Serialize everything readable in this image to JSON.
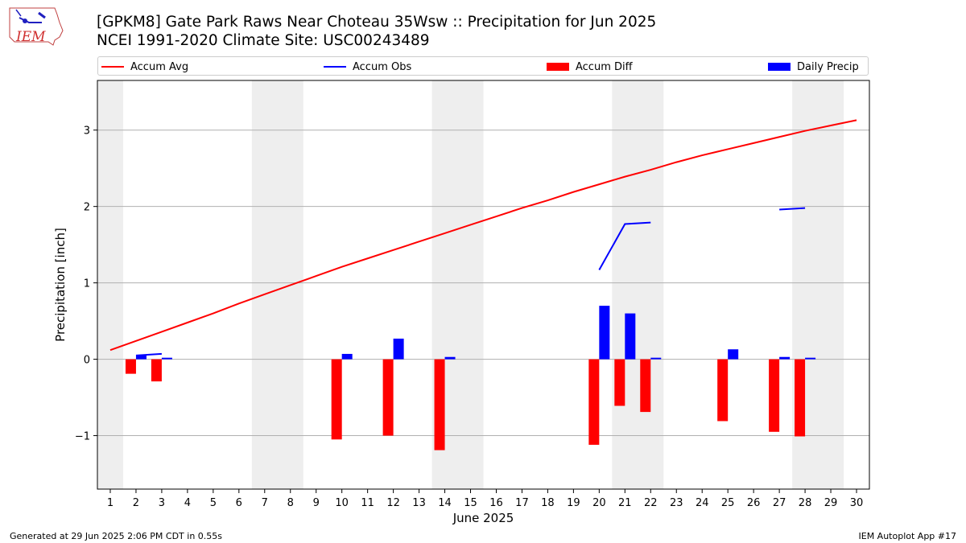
{
  "header": {
    "logo_text": "IEM",
    "title_line1": "[GPKM8] Gate Park Raws Near Choteau 35Wsw :: Precipitation for Jun 2025",
    "title_line2": "NCEI 1991-2020 Climate Site: USC00243489"
  },
  "footer": {
    "generated": "Generated at 29 Jun 2025 2:06 PM CDT in 0.55s",
    "app": "IEM Autoplot App #17"
  },
  "chart_data": {
    "type": "bar",
    "xlabel": "June 2025",
    "ylabel": "Precipitation [inch]",
    "xlim": [
      0.5,
      30.5
    ],
    "ylim": [
      -1.7,
      3.65
    ],
    "yticks": [
      -1,
      0,
      1,
      2,
      3
    ],
    "ytick_labels": [
      "−1",
      "0",
      "1",
      "2",
      "3"
    ],
    "xticks": [
      1,
      2,
      3,
      4,
      5,
      6,
      7,
      8,
      9,
      10,
      11,
      12,
      13,
      14,
      15,
      16,
      17,
      18,
      19,
      20,
      21,
      22,
      23,
      24,
      25,
      26,
      27,
      28,
      29,
      30
    ],
    "grid": "horizontal",
    "legend_position": "top",
    "weekend_shading": [
      [
        0.5,
        1.5
      ],
      [
        6.5,
        8.5
      ],
      [
        13.5,
        15.5
      ],
      [
        20.5,
        22.5
      ],
      [
        27.5,
        29.5
      ]
    ],
    "series": [
      {
        "name": "Accum Avg",
        "kind": "line",
        "color": "#ff0000",
        "x": [
          1,
          2,
          3,
          4,
          5,
          6,
          7,
          8,
          9,
          10,
          11,
          12,
          13,
          14,
          15,
          16,
          17,
          18,
          19,
          20,
          21,
          22,
          23,
          24,
          25,
          26,
          27,
          28,
          29,
          30
        ],
        "values": [
          0.12,
          0.24,
          0.36,
          0.48,
          0.6,
          0.73,
          0.85,
          0.97,
          1.09,
          1.21,
          1.32,
          1.43,
          1.54,
          1.65,
          1.76,
          1.87,
          1.98,
          2.08,
          2.19,
          2.29,
          2.39,
          2.48,
          2.58,
          2.67,
          2.75,
          2.83,
          2.91,
          2.99,
          3.06,
          3.13
        ]
      },
      {
        "name": "Accum Obs",
        "kind": "line",
        "color": "#0000ff",
        "segments": [
          {
            "x": [
              2,
              3
            ],
            "values": [
              0.05,
              0.07
            ]
          },
          {
            "x": [
              20,
              21,
              22
            ],
            "values": [
              1.17,
              1.77,
              1.79
            ]
          },
          {
            "x": [
              27,
              28
            ],
            "values": [
              1.96,
              1.98
            ]
          }
        ]
      },
      {
        "name": "Accum Diff",
        "kind": "bar",
        "color": "#ff0000",
        "x": [
          2,
          3,
          10,
          12,
          14,
          20,
          21,
          22,
          25,
          27,
          28
        ],
        "values": [
          -0.19,
          -0.29,
          -1.05,
          -1.0,
          -1.19,
          -1.12,
          -0.61,
          -0.69,
          -0.81,
          -0.95,
          -1.01
        ]
      },
      {
        "name": "Daily Precip",
        "kind": "bar",
        "color": "#0000ff",
        "x": [
          2,
          3,
          10,
          12,
          14,
          20,
          21,
          22,
          25,
          27,
          28
        ],
        "values": [
          0.05,
          0.02,
          0.07,
          0.27,
          0.03,
          0.7,
          0.6,
          0.02,
          0.13,
          0.03,
          0.02
        ]
      }
    ]
  }
}
